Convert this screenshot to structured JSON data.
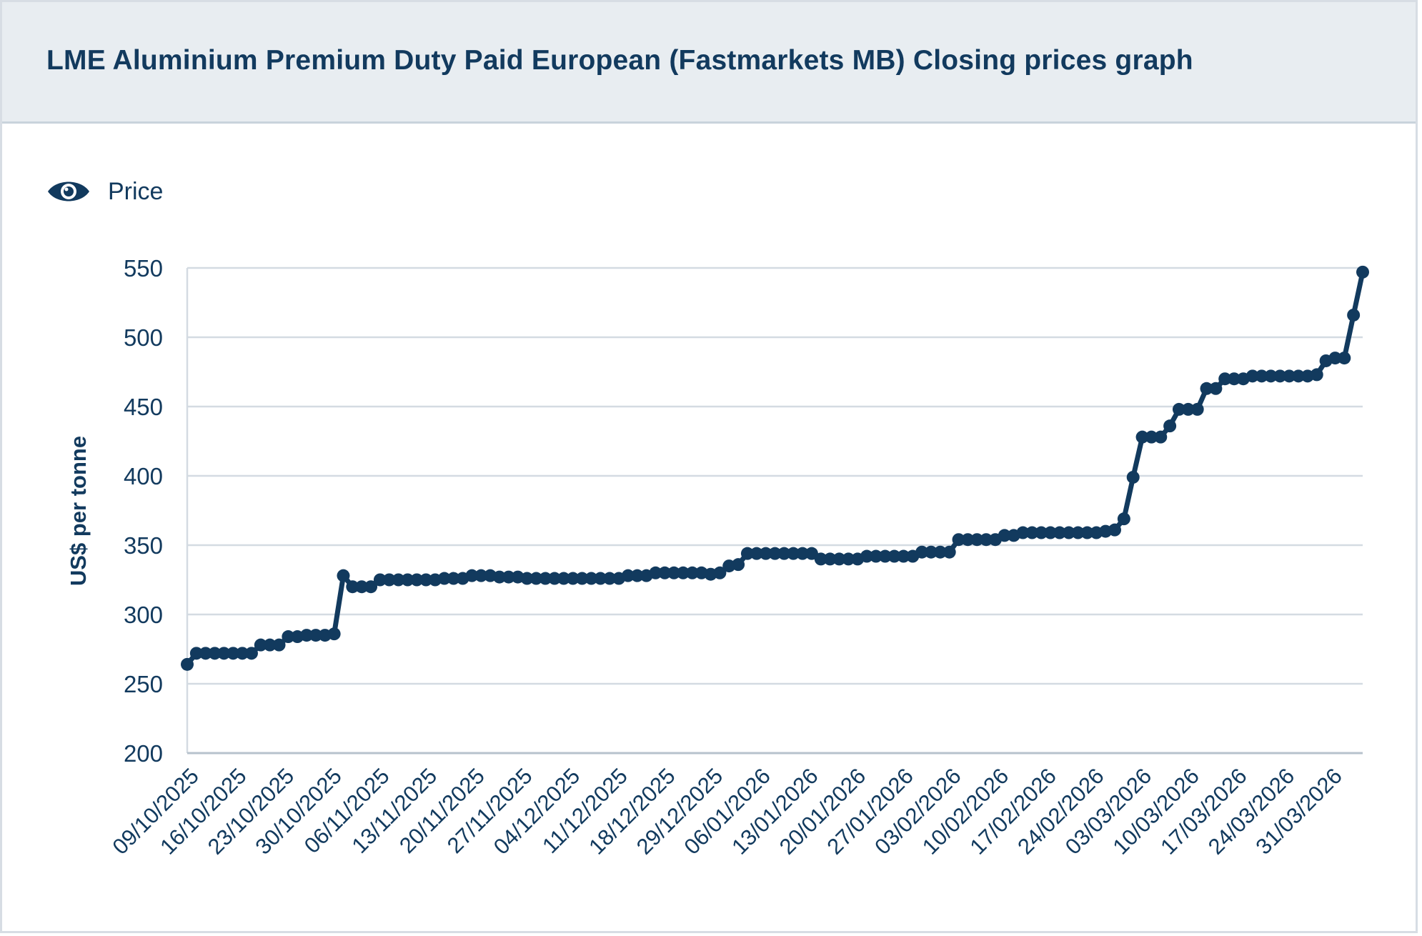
{
  "title": "LME Aluminium Premium Duty Paid European (Fastmarkets MB) Closing prices graph",
  "legend": {
    "label": "Price",
    "icon": "eye-icon"
  },
  "colors": {
    "series": "#123a5e",
    "grid": "#d4dbe2",
    "text": "#123a5e",
    "header_bg": "#e8edf1"
  },
  "chart_data": {
    "type": "line",
    "title": "LME Aluminium Premium Duty Paid European (Fastmarkets MB) Closing prices graph",
    "xlabel": "",
    "ylabel": "US$ per tonne",
    "ylim": [
      200,
      550
    ],
    "yticks": [
      200,
      250,
      300,
      350,
      400,
      450,
      500,
      550
    ],
    "grid": true,
    "legend_position": "top-left",
    "xticks": [
      "09/10/2025",
      "16/10/2025",
      "23/10/2025",
      "30/10/2025",
      "06/11/2025",
      "13/11/2025",
      "20/11/2025",
      "27/11/2025",
      "04/12/2025",
      "11/12/2025",
      "18/12/2025",
      "29/12/2025",
      "06/01/2026",
      "13/01/2026",
      "20/01/2026",
      "27/01/2026",
      "03/02/2026",
      "10/02/2026",
      "17/02/2026",
      "24/02/2026",
      "03/03/2026",
      "10/03/2026",
      "17/03/2026",
      "24/03/2026",
      "31/03/2026"
    ],
    "series": [
      {
        "name": "Price",
        "values": [
          264,
          272,
          272,
          272,
          272,
          272,
          272,
          272,
          278,
          278,
          278,
          284,
          284,
          285,
          285,
          285,
          286,
          328,
          320,
          320,
          320,
          325,
          325,
          325,
          325,
          325,
          325,
          325,
          326,
          326,
          326,
          328,
          328,
          328,
          327,
          327,
          327,
          326,
          326,
          326,
          326,
          326,
          326,
          326,
          326,
          326,
          326,
          326,
          328,
          328,
          328,
          330,
          330,
          330,
          330,
          330,
          330,
          329,
          330,
          335,
          336,
          344,
          344,
          344,
          344,
          344,
          344,
          344,
          344,
          340,
          340,
          340,
          340,
          340,
          342,
          342,
          342,
          342,
          342,
          342,
          345,
          345,
          345,
          345,
          354,
          354,
          354,
          354,
          354,
          357,
          357,
          359,
          359,
          359,
          359,
          359,
          359,
          359,
          359,
          359,
          360,
          361,
          369,
          399,
          428,
          428,
          428,
          436,
          448,
          448,
          448,
          463,
          463,
          470,
          470,
          470,
          472,
          472,
          472,
          472,
          472,
          472,
          472,
          473,
          483,
          485,
          485,
          516,
          547
        ]
      }
    ]
  }
}
